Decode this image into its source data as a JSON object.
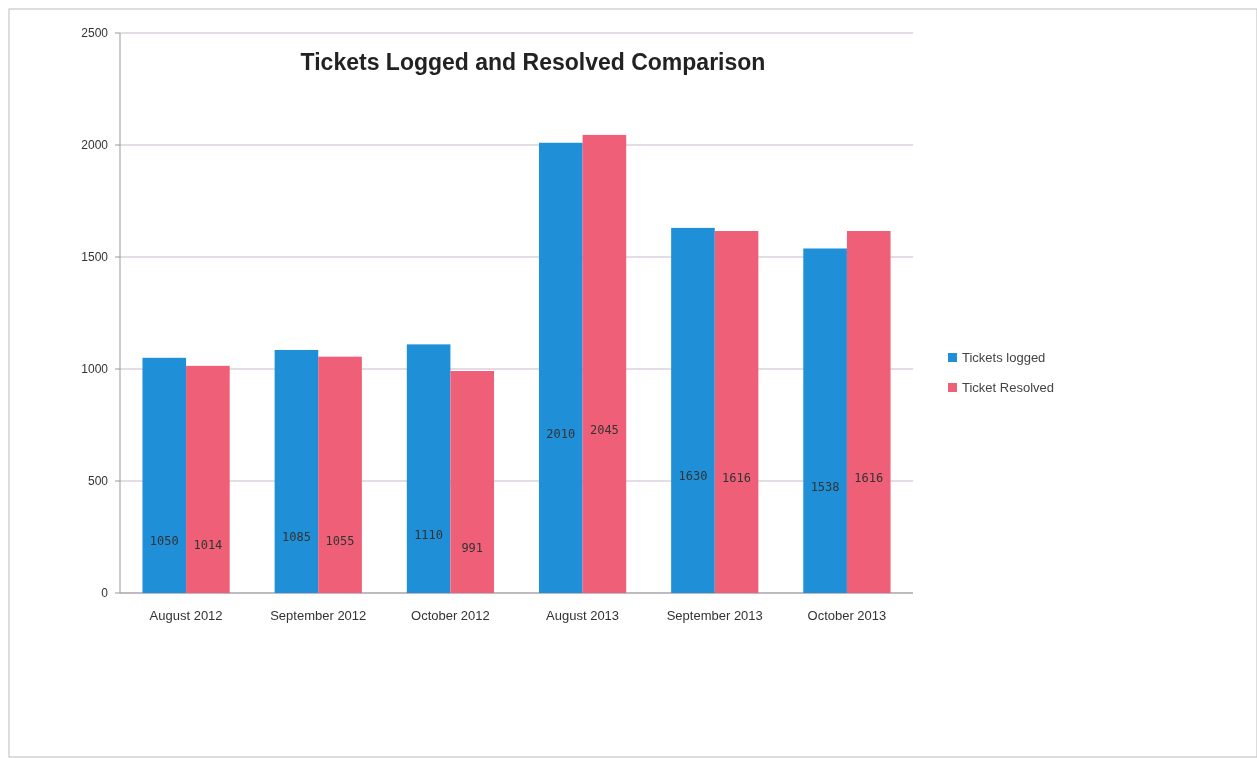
{
  "chart_data": {
    "type": "bar",
    "title": "Tickets Logged and Resolved Comparison",
    "categories": [
      "August 2012",
      "September 2012",
      "October 2012",
      "August 2013",
      "September 2013",
      "October 2013"
    ],
    "series": [
      {
        "name": "Tickets logged",
        "color": "#1f8fd8",
        "values": [
          1050,
          1085,
          1110,
          2010,
          1630,
          1538
        ]
      },
      {
        "name": "Ticket Resolved",
        "color": "#ef5f78",
        "values": [
          1014,
          1055,
          991,
          2045,
          1616,
          1616
        ]
      }
    ],
    "ylim": [
      0,
      2500
    ],
    "yticks": [
      0,
      500,
      1000,
      1500,
      2000,
      2500
    ],
    "grid": "y",
    "legend": "right",
    "data_labels": true
  }
}
